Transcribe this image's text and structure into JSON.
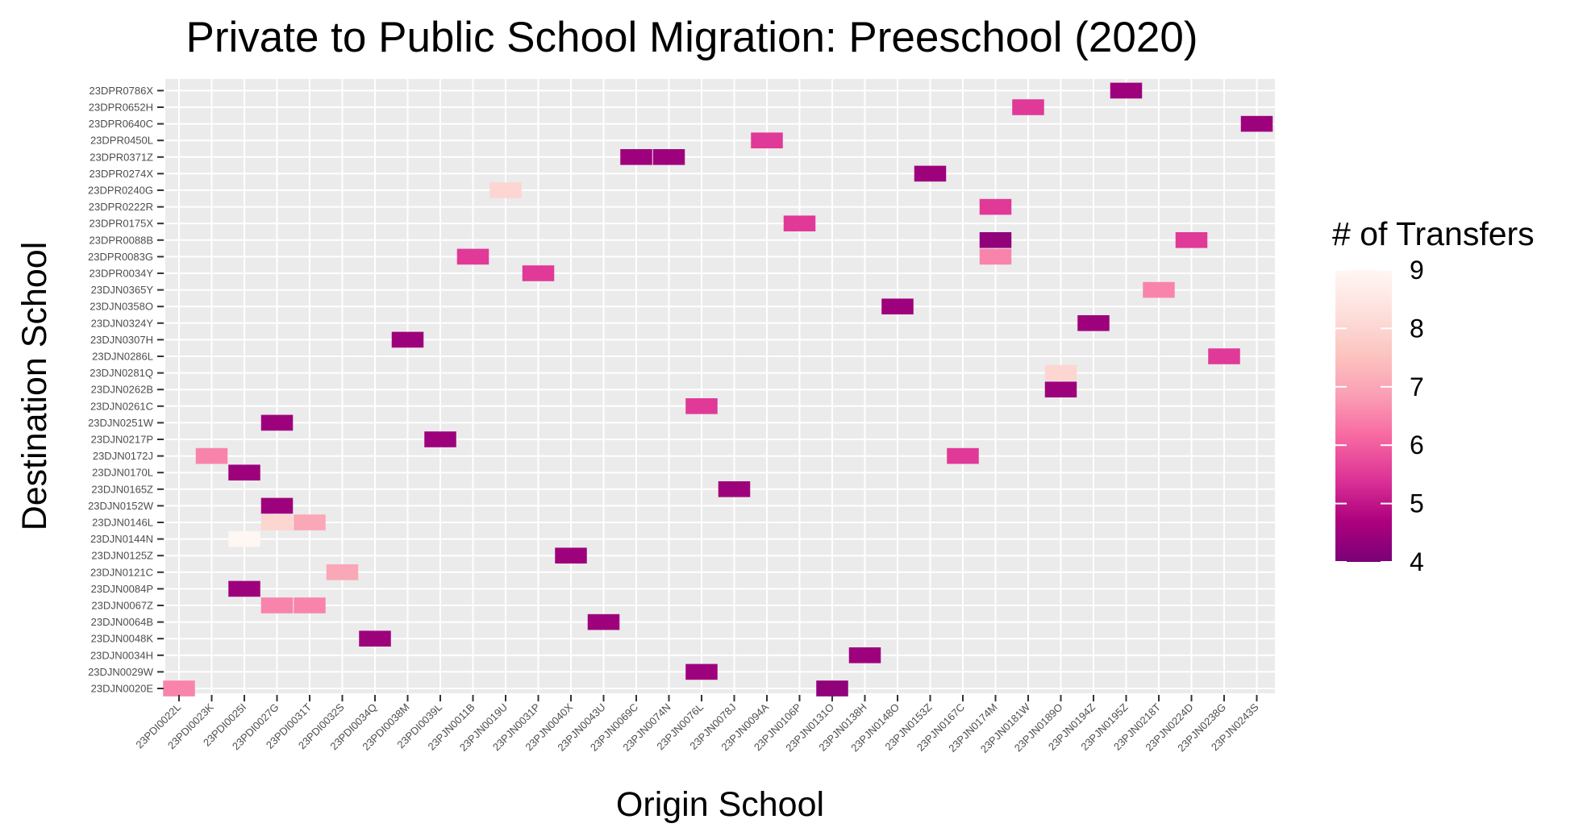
{
  "chart_data": {
    "type": "heatmap",
    "title": "Private to Public School Migration: Preeschool (2020)",
    "xlabel": "Origin School",
    "ylabel": "Destination School",
    "x_categories": [
      "23PDI0022L",
      "23PDI0023K",
      "23PDI0025I",
      "23PDI0027G",
      "23PDI0031T",
      "23PDI0032S",
      "23PDI0034Q",
      "23PDI0038M",
      "23PDI0039L",
      "23PJN0011B",
      "23PJN0019U",
      "23PJN0031P",
      "23PJN0040X",
      "23PJN0043U",
      "23PJN0069C",
      "23PJN0074N",
      "23PJN0076L",
      "23PJN0078J",
      "23PJN0094A",
      "23PJN0106P",
      "23PJN0131O",
      "23PJN0138H",
      "23PJN0148O",
      "23PJN0153Z",
      "23PJN0167C",
      "23PJN0174M",
      "23PJN0181W",
      "23PJN0189O",
      "23PJN0194Z",
      "23PJN0195Z",
      "23PJN0218T",
      "23PJN0224D",
      "23PJN0238G",
      "23PJN0243S"
    ],
    "y_categories": [
      "23DJN0020E",
      "23DJN0029W",
      "23DJN0034H",
      "23DJN0048K",
      "23DJN0064B",
      "23DJN0067Z",
      "23DJN0084P",
      "23DJN0121C",
      "23DJN0125Z",
      "23DJN0144N",
      "23DJN0146L",
      "23DJN0152W",
      "23DJN0165Z",
      "23DJN0170L",
      "23DJN0172J",
      "23DJN0217P",
      "23DJN0251W",
      "23DJN0261C",
      "23DJN0262B",
      "23DJN0281Q",
      "23DJN0286L",
      "23DJN0307H",
      "23DJN0324Y",
      "23DJN0358O",
      "23DJN0365Y",
      "23DPR0034Y",
      "23DPR0083G",
      "23DPR0088B",
      "23DPR0175X",
      "23DPR0222R",
      "23DPR0240G",
      "23DPR0274X",
      "23DPR0371Z",
      "23DPR0450L",
      "23DPR0640C",
      "23DPR0652H",
      "23DPR0786X"
    ],
    "cells": [
      {
        "x": "23PDI0022L",
        "y": "23DJN0020E",
        "value": 6.5
      },
      {
        "x": "23PJN0131O",
        "y": "23DJN0020E",
        "value": 4.3
      },
      {
        "x": "23PJN0076L",
        "y": "23DJN0029W",
        "value": 4.5
      },
      {
        "x": "23PJN0138H",
        "y": "23DJN0034H",
        "value": 4.5
      },
      {
        "x": "23PDI0034Q",
        "y": "23DJN0048K",
        "value": 4.5
      },
      {
        "x": "23PJN0043U",
        "y": "23DJN0064B",
        "value": 4.5
      },
      {
        "x": "23PDI0027G",
        "y": "23DJN0067Z",
        "value": 6.5
      },
      {
        "x": "23PDI0031T",
        "y": "23DJN0067Z",
        "value": 6.5
      },
      {
        "x": "23PDI0025I",
        "y": "23DJN0084P",
        "value": 4.5
      },
      {
        "x": "23PDI0032S",
        "y": "23DJN0121C",
        "value": 7
      },
      {
        "x": "23PJN0040X",
        "y": "23DJN0125Z",
        "value": 4.5
      },
      {
        "x": "23PDI0025I",
        "y": "23DJN0144N",
        "value": 9
      },
      {
        "x": "23PDI0027G",
        "y": "23DJN0146L",
        "value": 8
      },
      {
        "x": "23PDI0031T",
        "y": "23DJN0146L",
        "value": 7
      },
      {
        "x": "23PDI0027G",
        "y": "23DJN0152W",
        "value": 4.5
      },
      {
        "x": "23PJN0078J",
        "y": "23DJN0165Z",
        "value": 4.5
      },
      {
        "x": "23PDI0025I",
        "y": "23DJN0170L",
        "value": 4.5
      },
      {
        "x": "23PDI0023K",
        "y": "23DJN0172J",
        "value": 6.5
      },
      {
        "x": "23PJN0167C",
        "y": "23DJN0172J",
        "value": 5.5
      },
      {
        "x": "23PDI0039L",
        "y": "23DJN0217P",
        "value": 4.5
      },
      {
        "x": "23PDI0027G",
        "y": "23DJN0251W",
        "value": 4.5
      },
      {
        "x": "23PJN0076L",
        "y": "23DJN0261C",
        "value": 5.5
      },
      {
        "x": "23PJN0189O",
        "y": "23DJN0262B",
        "value": 4.5
      },
      {
        "x": "23PJN0189O",
        "y": "23DJN0281Q",
        "value": 8
      },
      {
        "x": "23PJN0238G",
        "y": "23DJN0286L",
        "value": 5.5
      },
      {
        "x": "23PDI0038M",
        "y": "23DJN0307H",
        "value": 4.5
      },
      {
        "x": "23PJN0194Z",
        "y": "23DJN0324Y",
        "value": 4.5
      },
      {
        "x": "23PJN0148O",
        "y": "23DJN0358O",
        "value": 4.5
      },
      {
        "x": "23PJN0218T",
        "y": "23DJN0365Y",
        "value": 6.5
      },
      {
        "x": "23PJN0031P",
        "y": "23DPR0034Y",
        "value": 5.5
      },
      {
        "x": "23PJN0011B",
        "y": "23DPR0083G",
        "value": 5.5
      },
      {
        "x": "23PJN0174M",
        "y": "23DPR0083G",
        "value": 6.5
      },
      {
        "x": "23PJN0174M",
        "y": "23DPR0088B",
        "value": 4.3
      },
      {
        "x": "23PJN0224D",
        "y": "23DPR0088B",
        "value": 5.5
      },
      {
        "x": "23PJN0106P",
        "y": "23DPR0175X",
        "value": 5.5
      },
      {
        "x": "23PJN0174M",
        "y": "23DPR0222R",
        "value": 5.5
      },
      {
        "x": "23PJN0019U",
        "y": "23DPR0240G",
        "value": 8
      },
      {
        "x": "23PJN0153Z",
        "y": "23DPR0274X",
        "value": 4.5
      },
      {
        "x": "23PJN0069C",
        "y": "23DPR0371Z",
        "value": 4.5
      },
      {
        "x": "23PJN0074N",
        "y": "23DPR0371Z",
        "value": 4.5
      },
      {
        "x": "23PJN0094A",
        "y": "23DPR0450L",
        "value": 5.5
      },
      {
        "x": "23PJN0243S",
        "y": "23DPR0640C",
        "value": 4.5
      },
      {
        "x": "23PJN0181W",
        "y": "23DPR0652H",
        "value": 5.5
      },
      {
        "x": "23PJN0195Z",
        "y": "23DPR0786X",
        "value": 4.5
      }
    ],
    "legend": {
      "title": "# of Transfers",
      "position": "right",
      "ticks": [
        4,
        5,
        6,
        7,
        8,
        9
      ],
      "min": 4,
      "max": 9,
      "colors": [
        "#7a0177",
        "#ae017e",
        "#dd3497",
        "#f768a1",
        "#fa9fb5",
        "#fcc5c0",
        "#fde0dd",
        "#fff7f3"
      ]
    },
    "grid": true,
    "background": "#ebebeb"
  }
}
